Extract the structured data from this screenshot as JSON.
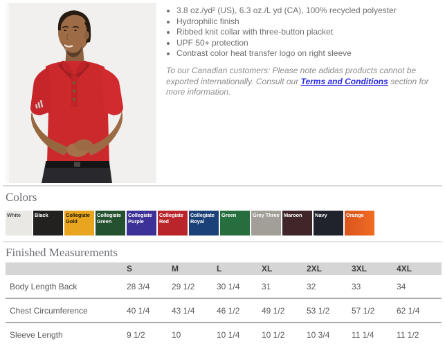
{
  "product": {
    "bullets": [
      "3.8 oz./yd² (US), 6.3 oz./L yd (CA), 100% recycled polyester",
      "Hydrophilic finish",
      "Ribbed knit collar with three-button placket",
      "UPF 50+ protection",
      "Contrast color heat transfer logo on right sleeve"
    ],
    "note": {
      "before": "To our Canadian customers: Please note adidas products cannot be exported internationally. Consult our ",
      "link_label": "Terms and Conditions",
      "after": " section for more information."
    }
  },
  "colors_section": {
    "heading": "Colors",
    "swatches": [
      {
        "name": "White",
        "bg": "#e9e8e5",
        "text_color": "#4d4d4d"
      },
      {
        "name": "Black",
        "bg": "#222120",
        "text_color": "#ffffff"
      },
      {
        "name": "Collegiate Gold",
        "bg": "#e9a51f",
        "text_color": "#1f1800"
      },
      {
        "name": "Collegiate Green",
        "bg": "#24512f",
        "text_color": "#ffffff"
      },
      {
        "name": "Collegiate Purple",
        "bg": "#3c3197",
        "text_color": "#ffffff"
      },
      {
        "name": "Collegiate Red",
        "bg": "#b9252b",
        "text_color": "#ffffff"
      },
      {
        "name": "Collegiate Royal",
        "bg": "#1b4179",
        "text_color": "#ffffff"
      },
      {
        "name": "Green",
        "bg": "#266e3e",
        "text_color": "#ffffff"
      },
      {
        "name": "Grey Three",
        "bg": "#a19f97",
        "text_color": "#ffffff"
      },
      {
        "name": "Maroon",
        "bg": "#402629",
        "text_color": "#ffffff"
      },
      {
        "name": "Navy",
        "bg": "#20222c",
        "text_color": "#ffffff"
      },
      {
        "name": "Orange",
        "bg": "linear-gradient(90deg,#d8541c,#f06c24)",
        "text_color": "#ffffff"
      }
    ]
  },
  "measurements": {
    "heading": "Finished Measurements",
    "columns": [
      "S",
      "M",
      "L",
      "XL",
      "2XL",
      "3XL",
      "4XL"
    ],
    "rows": [
      {
        "label": "Body Length Back",
        "values": [
          "28 3/4",
          "29 1/2",
          "30 1/4",
          "31",
          "32",
          "33",
          "34"
        ]
      },
      {
        "label": "Chest Circumference",
        "values": [
          "40 1/4",
          "43 1/4",
          "46 1/2",
          "49 1/2",
          "53 1/2",
          "57 1/2",
          "62 1/4"
        ]
      },
      {
        "label": "Sleeve Length",
        "values": [
          "9 1/2",
          "10",
          "10 1/4",
          "10 1/2",
          "10 3/4",
          "11 1/4",
          "11 1/2"
        ]
      }
    ]
  }
}
